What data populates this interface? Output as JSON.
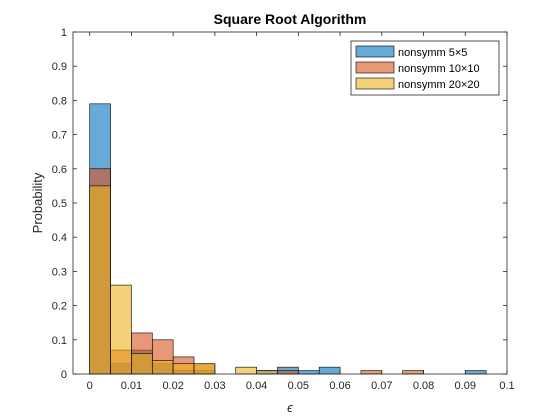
{
  "chart_data": {
    "type": "histogram",
    "title": "Square Root Algorithm",
    "xlabel": "ϵ",
    "ylabel": "Probability",
    "xlim": [
      -0.004,
      0.1
    ],
    "ylim": [
      0,
      1
    ],
    "x_ticks": [
      "0",
      "0.01",
      "0.02",
      "0.03",
      "0.04",
      "0.05",
      "0.06",
      "0.07",
      "0.08",
      "0.09",
      "0.1"
    ],
    "y_ticks": [
      "0",
      "0.1",
      "0.2",
      "0.3",
      "0.4",
      "0.5",
      "0.6",
      "0.7",
      "0.8",
      "0.9",
      "1"
    ],
    "x_tick_values": [
      0,
      0.01,
      0.02,
      0.03,
      0.04,
      0.05,
      0.06,
      0.07,
      0.08,
      0.09,
      0.1
    ],
    "y_tick_values": [
      0,
      0.1,
      0.2,
      0.3,
      0.4,
      0.5,
      0.6,
      0.7,
      0.8,
      0.9,
      1
    ],
    "grid": false,
    "legend_position": "top-right",
    "series": [
      {
        "name": "nonsymm 5×5",
        "color": "#0072BD",
        "bin_width": 0.005,
        "bins": [
          {
            "x0": 0.0,
            "x1": 0.005,
            "value": 0.79
          },
          {
            "x0": 0.005,
            "x1": 0.01,
            "value": 0.03
          },
          {
            "x0": 0.01,
            "x1": 0.015,
            "value": 0.07
          },
          {
            "x0": 0.015,
            "x1": 0.02,
            "value": 0.03
          },
          {
            "x0": 0.02,
            "x1": 0.025,
            "value": 0.01
          },
          {
            "x0": 0.025,
            "x1": 0.03,
            "value": 0.01
          },
          {
            "x0": 0.04,
            "x1": 0.045,
            "value": 0.01
          },
          {
            "x0": 0.045,
            "x1": 0.05,
            "value": 0.02
          },
          {
            "x0": 0.05,
            "x1": 0.055,
            "value": 0.01
          },
          {
            "x0": 0.055,
            "x1": 0.06,
            "value": 0.02
          },
          {
            "x0": 0.09,
            "x1": 0.095,
            "value": 0.01
          }
        ]
      },
      {
        "name": "nonsymm 10×10",
        "color": "#D95319",
        "bin_width": 0.005,
        "bins": [
          {
            "x0": 0.0,
            "x1": 0.005,
            "value": 0.6
          },
          {
            "x0": 0.005,
            "x1": 0.01,
            "value": 0.07
          },
          {
            "x0": 0.01,
            "x1": 0.015,
            "value": 0.12
          },
          {
            "x0": 0.015,
            "x1": 0.02,
            "value": 0.1
          },
          {
            "x0": 0.02,
            "x1": 0.025,
            "value": 0.05
          },
          {
            "x0": 0.025,
            "x1": 0.03,
            "value": 0.03
          },
          {
            "x0": 0.045,
            "x1": 0.05,
            "value": 0.01
          },
          {
            "x0": 0.065,
            "x1": 0.07,
            "value": 0.01
          },
          {
            "x0": 0.075,
            "x1": 0.08,
            "value": 0.01
          }
        ]
      },
      {
        "name": "nonsymm 20×20",
        "color": "#EDB120",
        "bin_width": 0.005,
        "bins": [
          {
            "x0": 0.0,
            "x1": 0.005,
            "value": 0.55
          },
          {
            "x0": 0.005,
            "x1": 0.01,
            "value": 0.26
          },
          {
            "x0": 0.01,
            "x1": 0.015,
            "value": 0.06
          },
          {
            "x0": 0.015,
            "x1": 0.02,
            "value": 0.04
          },
          {
            "x0": 0.02,
            "x1": 0.025,
            "value": 0.03
          },
          {
            "x0": 0.025,
            "x1": 0.03,
            "value": 0.03
          },
          {
            "x0": 0.035,
            "x1": 0.04,
            "value": 0.02
          },
          {
            "x0": 0.04,
            "x1": 0.045,
            "value": 0.01
          }
        ]
      }
    ]
  }
}
